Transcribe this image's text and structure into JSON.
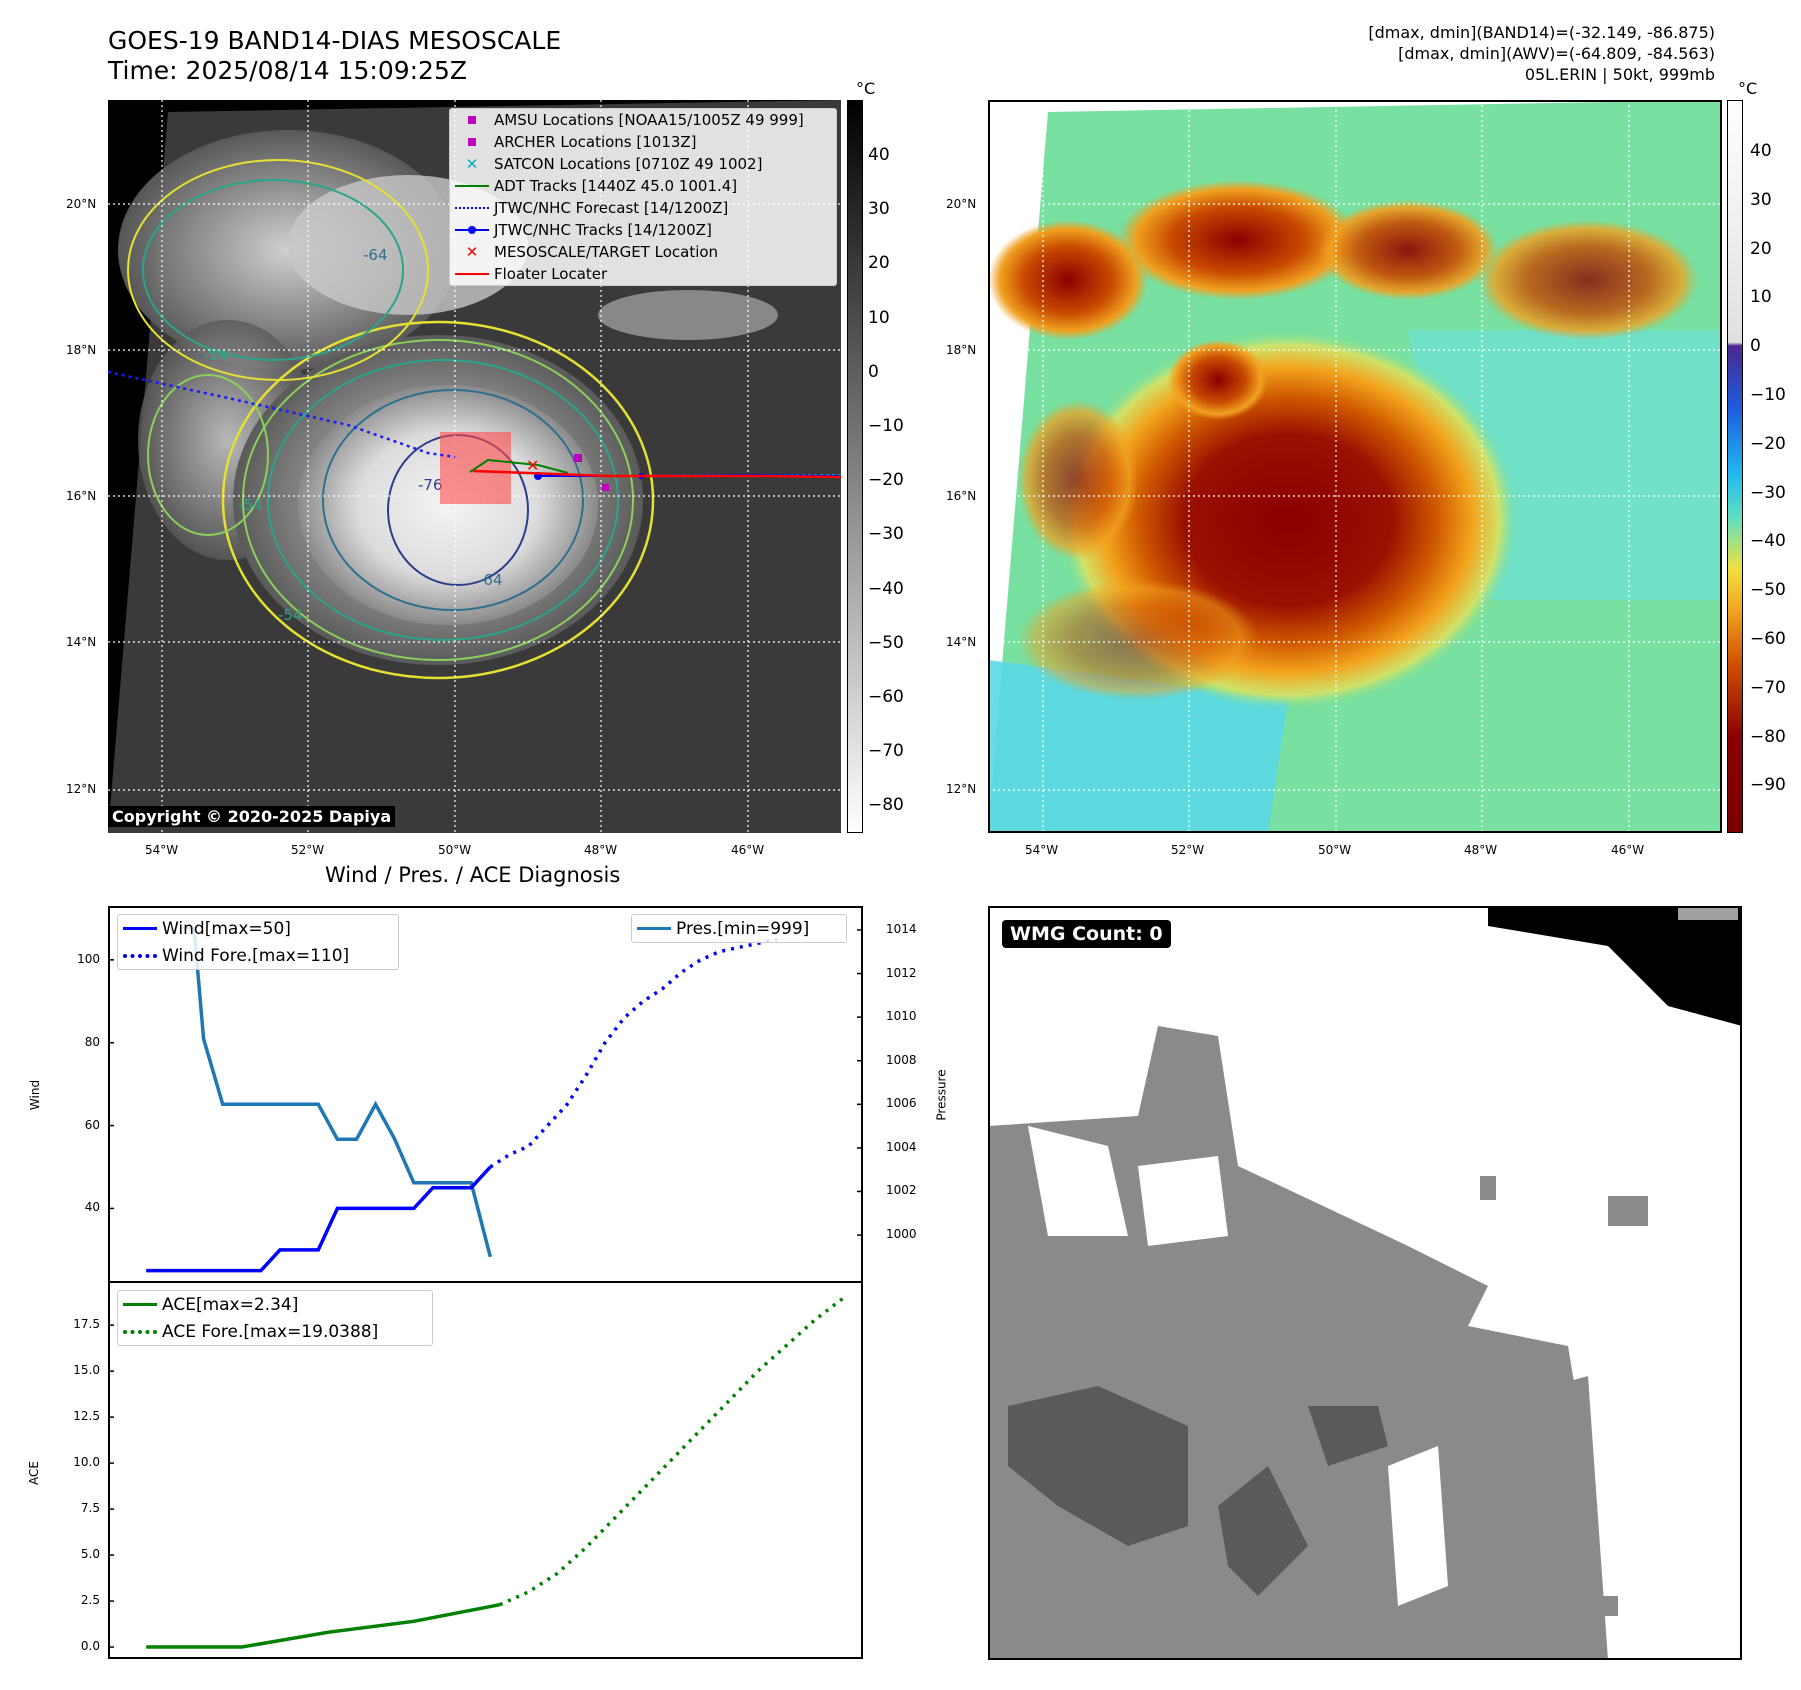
{
  "header": {
    "title_line1": "GOES-19 BAND14-DIAS MESOSCALE",
    "title_line2": "Time: 2025/08/14 15:09:25Z",
    "info_line1": "[dmax, dmin](BAND14)=(-32.149, -86.875)",
    "info_line2": "[dmax, dmin](AWV)=(-64.809, -84.563)",
    "info_line3": "05L.ERIN | 50kt, 999mb"
  },
  "map": {
    "lat_labels": [
      "20°N",
      "18°N",
      "16°N",
      "14°N",
      "12°N"
    ],
    "lon_labels": [
      "54°W",
      "52°W",
      "50°W",
      "48°W",
      "46°W"
    ],
    "copyright": "Copyright © 2020-2025 Dapiya",
    "contour_labels": [
      "-54",
      "-54",
      "-64",
      "-76",
      "-64",
      "-54"
    ],
    "legend": [
      {
        "label": "AMSU Locations [NOAA15/1005Z 49 999]",
        "marker": "square",
        "color": "#c000c0"
      },
      {
        "label": "ARCHER Locations [1013Z]",
        "marker": "square",
        "color": "#c000c0"
      },
      {
        "label": "SATCON Locations [0710Z 49 1002]",
        "marker": "x",
        "color": "#00b0c0"
      },
      {
        "label": "ADT Tracks [1440Z 45.0 1001.4]",
        "marker": "line",
        "color": "#008000"
      },
      {
        "label": "JTWC/NHC Forecast [14/1200Z]",
        "marker": "dotted",
        "color": "#0000ff"
      },
      {
        "label": "JTWC/NHC Tracks [14/1200Z]",
        "marker": "line-dot",
        "color": "#0000ff"
      },
      {
        "label": "MESOSCALE/TARGET Location",
        "marker": "x",
        "color": "#ff0000"
      },
      {
        "label": "Floater Locater",
        "marker": "line",
        "color": "#ff0000"
      }
    ]
  },
  "colorbar_gray": {
    "unit": "°C",
    "ticks": [
      "40",
      "30",
      "20",
      "10",
      "0",
      "−10",
      "−20",
      "−30",
      "−40",
      "−50",
      "−60",
      "−70",
      "−80"
    ]
  },
  "colorbar_color": {
    "unit": "°C",
    "ticks": [
      "40",
      "30",
      "20",
      "10",
      "0",
      "−10",
      "−20",
      "−30",
      "−40",
      "−50",
      "−60",
      "−70",
      "−80",
      "−90"
    ]
  },
  "wmg": {
    "label": "WMG Count: 0"
  },
  "chart_data": [
    {
      "type": "line",
      "title": "Wind / Pres. / ACE Diagnosis",
      "ylabel": "Wind",
      "ylabel_right": "Pressure",
      "ylim": [
        22,
        113
      ],
      "ylim_right": [
        997.8,
        1015.1
      ],
      "yticks": [
        "100",
        "80",
        "60",
        "40"
      ],
      "yticks_right": [
        "1014",
        "1012",
        "1010",
        "1008",
        "1006",
        "1004",
        "1002",
        "1000"
      ],
      "series": [
        {
          "name": "Wind[max=50]",
          "axis": "left",
          "style": "solid",
          "color": "#0000ff",
          "x": [
            0,
            2,
            4,
            6,
            8,
            10,
            12,
            14,
            16,
            18,
            20,
            22,
            24,
            26,
            28,
            30,
            32,
            34,
            36
          ],
          "y": [
            25,
            25,
            25,
            25,
            25,
            25,
            25,
            30,
            30,
            30,
            40,
            40,
            40,
            40,
            40,
            45,
            45,
            45,
            50
          ]
        },
        {
          "name": "Wind Fore.[max=110]",
          "axis": "left",
          "style": "dotted",
          "color": "#0000ff",
          "x": [
            36,
            38,
            40,
            42,
            44,
            46,
            48,
            50,
            52,
            54,
            56,
            58,
            60,
            62,
            64,
            66
          ],
          "y": [
            50,
            53,
            55,
            60,
            65,
            72,
            80,
            86,
            90,
            93,
            97,
            100,
            102,
            103,
            104,
            105
          ]
        },
        {
          "name": "Pres.[min=999]",
          "axis": "right",
          "style": "solid",
          "color": "#1f77b4",
          "x": [
            4,
            5,
            6,
            8,
            10,
            12,
            14,
            16,
            18,
            20,
            22,
            24,
            26,
            28,
            30,
            32,
            34,
            36
          ],
          "y": [
            1014.1,
            1014.1,
            1009.0,
            1006.0,
            1006.0,
            1006.0,
            1006.0,
            1006.0,
            1006.0,
            1004.4,
            1004.4,
            1006.0,
            1004.4,
            1002.4,
            1002.4,
            1002.4,
            1002.4,
            999.0
          ]
        }
      ]
    },
    {
      "type": "line",
      "ylabel": "ACE",
      "ylim": [
        -0.65,
        19.9
      ],
      "yticks": [
        "17.5",
        "15.0",
        "12.5",
        "10.0",
        "7.5",
        "5.0",
        "2.5",
        "0.0"
      ],
      "series": [
        {
          "name": "ACE[max=2.34]",
          "style": "solid",
          "color": "#008000",
          "x": [
            0,
            10,
            19,
            28,
            37
          ],
          "y": [
            0,
            0,
            0.8,
            1.4,
            2.3
          ]
        },
        {
          "name": "ACE Fore.[max=19.0388]",
          "style": "dotted",
          "color": "#008000",
          "x": [
            37,
            40,
            43,
            46,
            49,
            52,
            55,
            58,
            61,
            64,
            67,
            70,
            73
          ],
          "y": [
            2.3,
            3.0,
            4.0,
            5.4,
            7.0,
            8.6,
            10.2,
            11.8,
            13.4,
            15.0,
            16.4,
            17.8,
            19.0
          ]
        }
      ]
    }
  ]
}
